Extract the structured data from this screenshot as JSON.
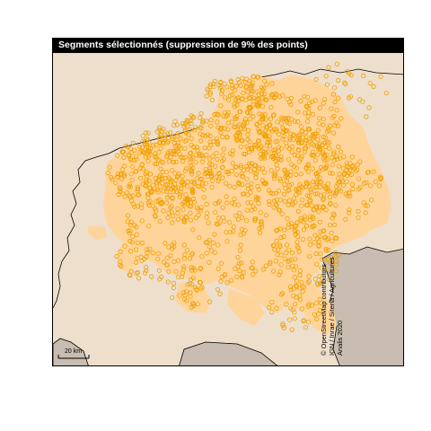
{
  "map": {
    "title": "Segments sélectionnés (suppression de 9% des points)",
    "scale_label": "20 km",
    "credits": [
      "© OpenStreetMap contributors",
      "IGN / Inrae / Siteria / Agricultures",
      "Analis 2020"
    ],
    "colors": {
      "background": "#eddfcc",
      "neighbor_region": "#c8bdb0",
      "selected_area": "#ffd49a",
      "points": "#f0a000",
      "border": "#000000"
    },
    "icons": [
      "scale-bar-icon"
    ],
    "points_symbol": "open-circle"
  }
}
